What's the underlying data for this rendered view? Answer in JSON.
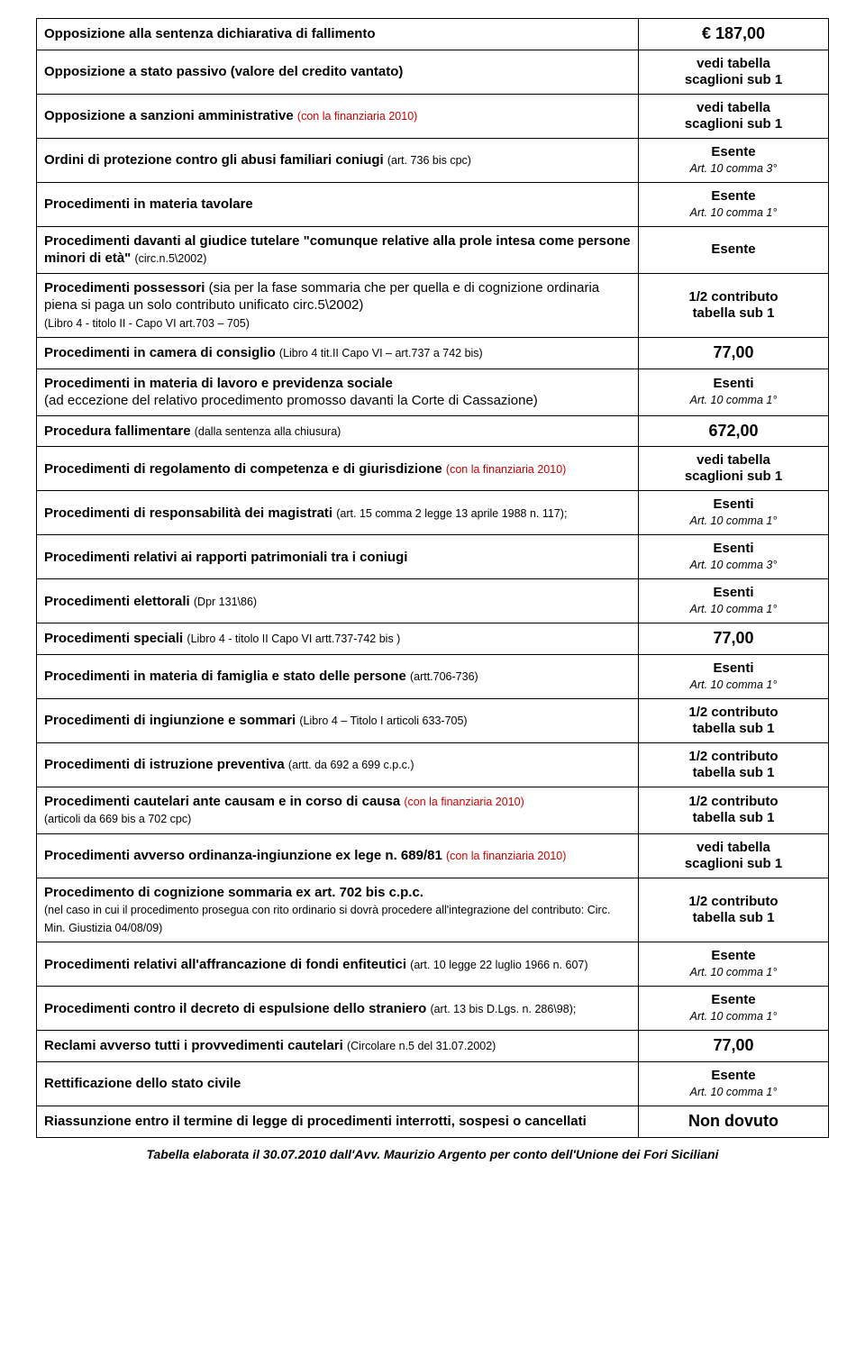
{
  "rows": [
    {
      "l": [
        {
          "t": "Opposizione alla sentenza dichiarativa di fallimento",
          "c": "b"
        }
      ],
      "r": [
        {
          "t": "€ 187,00",
          "c": "price"
        }
      ]
    },
    {
      "l": [
        {
          "t": "Opposizione a stato passivo (valore del credito vantato)",
          "c": "b"
        }
      ],
      "r": [
        {
          "t": "vedi tabella",
          "c": "b"
        },
        {
          "t": "scaglioni sub 1",
          "c": "b"
        }
      ]
    },
    {
      "l": [
        {
          "t": "Opposizione a sanzioni amministrative ",
          "c": "b"
        },
        {
          "t": "(con la finanziaria 2010)",
          "c": "red sm"
        }
      ],
      "r": [
        {
          "t": "vedi tabella",
          "c": "b"
        },
        {
          "t": "scaglioni sub 1",
          "c": "b"
        }
      ]
    },
    {
      "l": [
        {
          "t": "Ordini di protezione contro gli abusi familiari coniugi ",
          "c": "b"
        },
        {
          "t": "(art. 736 bis cpc)",
          "c": "sm"
        }
      ],
      "r": [
        {
          "t": "Esente",
          "c": "b"
        },
        {
          "t": "Art. 10 comma 3°",
          "c": "it sm"
        }
      ]
    },
    {
      "l": [
        {
          "t": "Procedimenti in materia tavolare",
          "c": "b"
        }
      ],
      "r": [
        {
          "t": "Esente",
          "c": "b"
        },
        {
          "t": "Art. 10 comma 1°",
          "c": "it sm"
        }
      ]
    },
    {
      "l": [
        {
          "t": "Procedimenti davanti al giudice tutelare \"comunque relative alla prole intesa come persone minori di età\" ",
          "c": "b"
        },
        {
          "t": "(circ.n.5\\2002)",
          "c": "sm"
        }
      ],
      "r": [
        {
          "t": "Esente",
          "c": "b"
        }
      ]
    },
    {
      "l": [
        {
          "t": "Procedimenti possessori ",
          "c": "b"
        },
        {
          "t": "(sia per la fase sommaria che per quella e di cognizione ordinaria piena si paga un solo contributo unificato circ.5\\2002)",
          "c": ""
        },
        {
          "br": true
        },
        {
          "t": "(Libro 4 - titolo II - Capo VI art.703 – 705)",
          "c": "sm"
        }
      ],
      "r": [
        {
          "t": "1/2 contributo",
          "c": "b"
        },
        {
          "t": "tabella sub 1",
          "c": "b"
        }
      ]
    },
    {
      "l": [
        {
          "t": "Procedimenti in camera di consiglio ",
          "c": "b"
        },
        {
          "t": "(Libro 4 tit.II Capo VI – art.737  a 742 bis)",
          "c": "sm"
        }
      ],
      "r": [
        {
          "t": "77,00",
          "c": "price"
        }
      ]
    },
    {
      "l": [
        {
          "t": "Procedimenti in materia di lavoro e previdenza sociale",
          "c": "b"
        },
        {
          "br": true
        },
        {
          "t": "(ad eccezione del relativo procedimento promosso davanti la Corte di Cassazione)",
          "c": ""
        }
      ],
      "r": [
        {
          "t": "Esenti",
          "c": "b"
        },
        {
          "t": "Art. 10 comma 1°",
          "c": "it sm"
        }
      ]
    },
    {
      "l": [
        {
          "t": "Procedura fallimentare ",
          "c": "b"
        },
        {
          "t": "(dalla sentenza alla chiusura)",
          "c": "sm"
        }
      ],
      "r": [
        {
          "t": "672,00",
          "c": "price-lg"
        }
      ]
    },
    {
      "l": [
        {
          "t": "Procedimenti di regolamento di competenza e di giurisdizione ",
          "c": "b"
        },
        {
          "t": "(con la finanziaria 2010)",
          "c": "red sm"
        }
      ],
      "r": [
        {
          "t": "vedi tabella",
          "c": "b"
        },
        {
          "t": "scaglioni sub 1",
          "c": "b"
        }
      ]
    },
    {
      "l": [
        {
          "t": "Procedimenti di responsabilità dei magistrati ",
          "c": "b"
        },
        {
          "t": "(art. 15 comma 2 legge 13 aprile 1988 n. 117);",
          "c": "sm"
        }
      ],
      "r": [
        {
          "t": "Esenti",
          "c": "b"
        },
        {
          "t": "Art. 10 comma 1°",
          "c": "it sm"
        }
      ]
    },
    {
      "l": [
        {
          "t": "Procedimenti relativi ai rapporti patrimoniali tra i coniugi",
          "c": "b"
        }
      ],
      "r": [
        {
          "t": "Esenti",
          "c": "b"
        },
        {
          "t": "Art. 10 comma 3°",
          "c": "it sm"
        }
      ]
    },
    {
      "l": [
        {
          "t": "Procedimenti elettorali ",
          "c": "b"
        },
        {
          "t": "(Dpr 131\\86)",
          "c": "sm"
        }
      ],
      "r": [
        {
          "t": "Esenti",
          "c": "b"
        },
        {
          "t": "Art. 10 comma 1°",
          "c": "it sm"
        }
      ]
    },
    {
      "l": [
        {
          "t": "Procedimenti speciali ",
          "c": "b"
        },
        {
          "t": "(Libro 4 - titolo II Capo VI artt.737-742 bis )",
          "c": "sm"
        }
      ],
      "r": [
        {
          "t": "77,00",
          "c": "price"
        }
      ]
    },
    {
      "l": [
        {
          "t": "Procedimenti in materia di famiglia e stato delle persone ",
          "c": "b"
        },
        {
          "t": "(artt.706-736)",
          "c": "sm"
        }
      ],
      "r": [
        {
          "t": "Esenti",
          "c": "b"
        },
        {
          "t": "Art. 10 comma 1°",
          "c": "it sm"
        }
      ]
    },
    {
      "l": [
        {
          "t": "Procedimenti di ingiunzione e sommari ",
          "c": "b"
        },
        {
          "t": "(Libro 4 – Titolo I articoli  633-705)",
          "c": "sm"
        }
      ],
      "r": [
        {
          "t": "1/2 contributo",
          "c": "b"
        },
        {
          "t": "tabella sub 1",
          "c": "b"
        }
      ]
    },
    {
      "l": [
        {
          "t": "Procedimenti di istruzione preventiva ",
          "c": "b"
        },
        {
          "t": "(artt. da 692 a 699 c.p.c.)",
          "c": "sm"
        }
      ],
      "r": [
        {
          "t": "1/2 contributo",
          "c": "b"
        },
        {
          "t": "tabella sub 1",
          "c": "b"
        }
      ]
    },
    {
      "l": [
        {
          "t": "Procedimenti cautelari  ante causam  e in corso di causa  ",
          "c": "b"
        },
        {
          "t": "(con la finanziaria 2010)",
          "c": "red sm"
        },
        {
          "br": true
        },
        {
          "t": "(articoli da 669 bis a 702 cpc)",
          "c": "sm"
        }
      ],
      "r": [
        {
          "t": "1/2 contributo",
          "c": "b"
        },
        {
          "t": "tabella sub 1",
          "c": "b"
        }
      ]
    },
    {
      "l": [
        {
          "t": "Procedimenti avverso ordinanza-ingiunzione ex lege n. 689/81 ",
          "c": "b"
        },
        {
          "t": "(con la finanziaria 2010)",
          "c": "red sm"
        }
      ],
      "r": [
        {
          "t": "vedi tabella",
          "c": "b"
        },
        {
          "t": "scaglioni sub 1",
          "c": "b"
        }
      ]
    },
    {
      "l": [
        {
          "t": "Procedimento di cognizione sommaria ex art. 702 bis c.p.c.",
          "c": "b"
        },
        {
          "br": true
        },
        {
          "t": "(nel caso in cui il procedimento prosegua con rito ordinario si dovrà procedere all'integrazione del contributo: Circ. Min. Giustizia 04/08/09)",
          "c": "sm"
        }
      ],
      "r": [
        {
          "t": "1/2 contributo",
          "c": "b"
        },
        {
          "t": "tabella sub 1",
          "c": "b"
        }
      ]
    },
    {
      "l": [
        {
          "t": "Procedimenti relativi all'affrancazione di fondi enfiteutici ",
          "c": "b"
        },
        {
          "t": "(art. 10 legge 22 luglio 1966 n. 607)",
          "c": "sm"
        }
      ],
      "r": [
        {
          "t": "Esente",
          "c": "b"
        },
        {
          "t": "Art. 10 comma 1°",
          "c": "it sm"
        }
      ]
    },
    {
      "l": [
        {
          "t": "Procedimenti contro il decreto di espulsione dello straniero ",
          "c": "b"
        },
        {
          "t": "(art. 13 bis D.Lgs. n. 286\\98);",
          "c": "sm"
        }
      ],
      "r": [
        {
          "t": "Esente",
          "c": "b"
        },
        {
          "t": "Art. 10 comma 1°",
          "c": "it sm"
        }
      ]
    },
    {
      "l": [
        {
          "t": "Reclami avverso tutti i provvedimenti cautelari ",
          "c": "b"
        },
        {
          "t": "(Circolare n.5 del 31.07.2002)",
          "c": "sm"
        }
      ],
      "r": [
        {
          "t": "77,00",
          "c": "price"
        }
      ]
    },
    {
      "l": [
        {
          "t": "Rettificazione dello stato civile",
          "c": "b"
        }
      ],
      "r": [
        {
          "t": "Esente",
          "c": "b"
        },
        {
          "t": "Art. 10 comma 1°",
          "c": "it sm"
        }
      ]
    },
    {
      "l": [
        {
          "t": "Riassunzione entro il termine di legge di procedimenti interrotti, sospesi o cancellati",
          "c": "b"
        }
      ],
      "r": [
        {
          "t": "Non dovuto",
          "c": "price"
        }
      ]
    }
  ],
  "footer": "Tabella elaborata il 30.07.2010 dall'Avv. Maurizio Argento per conto dell'Unione dei Fori Siciliani"
}
